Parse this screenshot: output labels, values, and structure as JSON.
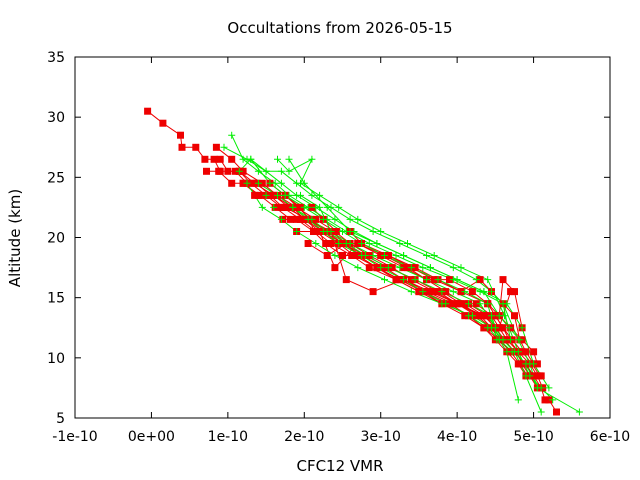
{
  "chart_data": {
    "type": "scatter",
    "title": "Occultations from 2026-05-15",
    "xlabel": "CFC12 VMR",
    "ylabel": "Altitude (km)",
    "xlim": [
      -1e-10,
      6e-10
    ],
    "ylim": [
      5,
      35
    ],
    "x_ticks": [
      "-1e-10",
      "0e+00",
      "1e-10",
      "2e-10",
      "3e-10",
      "4e-10",
      "5e-10",
      "6e-10"
    ],
    "y_ticks": [
      "5",
      "10",
      "15",
      "20",
      "25",
      "30",
      "35"
    ],
    "grid": false,
    "legend": "none",
    "colors": {
      "red_series": "#ee0000",
      "green_series": "#00ee00",
      "frame": "#000000"
    },
    "series": [
      {
        "marker": "square",
        "color": "#ee0000",
        "x": [
          -5e-12,
          1.5e-11,
          3.8e-11,
          4e-11,
          5.8e-11,
          7e-11,
          8.2e-11,
          9e-11,
          1.1e-10,
          1.25e-10,
          1.38e-10,
          1.55e-10,
          1.75e-10,
          1.92e-10,
          2.08e-10,
          2.12e-10,
          2.35e-10,
          2.55e-10,
          2.7e-10,
          2.95e-10,
          3.25e-10,
          3.55e-10,
          3.9e-10,
          4.15e-10,
          4.35e-10,
          4.55e-10,
          4.7e-10,
          4.78e-10,
          4.85e-10,
          4.95e-10,
          5.05e-10,
          5.1e-10,
          5.15e-10,
          5.2e-10,
          5.3e-10
        ],
        "y": [
          30.5,
          29.5,
          28.5,
          27.5,
          27.5,
          26.5,
          26.5,
          25.5,
          25.5,
          24.5,
          24.5,
          23.5,
          23.5,
          22.5,
          21.5,
          20.5,
          20.5,
          19.5,
          18.5,
          17.5,
          16.5,
          15.5,
          14.5,
          13.5,
          12.5,
          11.5,
          10.5,
          10.5,
          9.5,
          8.5,
          7.5,
          7.5,
          6.5,
          6.5,
          5.5
        ]
      },
      {
        "marker": "square",
        "color": "#ee0000",
        "x": [
          7.2e-11,
          8.8e-11,
          1.05e-10,
          1.2e-10,
          1.4e-10,
          1.6e-10,
          1.8e-10,
          2e-10,
          2.2e-10,
          2.45e-10,
          2.7e-10,
          3e-10,
          3.3e-10,
          3.6e-10,
          3.85e-10,
          4.1e-10,
          4.35e-10,
          4.55e-10,
          4.65e-10,
          4.8e-10,
          4.95e-10,
          5.05e-10,
          5.12e-10
        ],
        "y": [
          25.5,
          25.5,
          24.5,
          24.5,
          23.5,
          23.5,
          22.5,
          21.5,
          20.5,
          19.5,
          19.5,
          18.5,
          17.5,
          16.5,
          15.5,
          14.5,
          13.5,
          12.5,
          11.5,
          10.5,
          9.5,
          8.5,
          7.5
        ]
      },
      {
        "marker": "square",
        "color": "#ee0000",
        "x": [
          9e-11,
          1e-10,
          1.15e-10,
          1.3e-10,
          1.5e-10,
          1.7e-10,
          1.85e-10,
          2.05e-10,
          2.3e-10,
          2.5e-10,
          2.8e-10,
          3.1e-10,
          3.45e-10,
          3.75e-10,
          4e-10,
          4.25e-10,
          4.45e-10,
          4.6e-10,
          4.75e-10,
          4.9e-10,
          5e-10,
          5.1e-10
        ],
        "y": [
          26.5,
          25.5,
          25.5,
          24.5,
          23.5,
          22.5,
          22.5,
          21.5,
          20.5,
          19.5,
          18.5,
          17.5,
          16.5,
          15.5,
          14.5,
          13.5,
          12.5,
          11.5,
          10.5,
          9.5,
          8.5,
          7.5
        ]
      },
      {
        "marker": "square",
        "color": "#ee0000",
        "x": [
          8.5e-11,
          1.05e-10,
          1.2e-10,
          1.45e-10,
          1.65e-10,
          1.9e-10,
          2.15e-10,
          2.4e-10,
          2.6e-10,
          2.85e-10,
          3.15e-10,
          3.4e-10,
          3.7e-10,
          4e-10,
          4.3e-10,
          4.5e-10,
          4.6e-10,
          4.72e-10,
          4.85e-10,
          4.98e-10,
          5.08e-10
        ],
        "y": [
          27.5,
          26.5,
          25.5,
          24.5,
          23.5,
          22.5,
          21.5,
          20.5,
          19.5,
          18.5,
          17.5,
          16.5,
          15.5,
          14.5,
          13.5,
          13.5,
          12.5,
          11.5,
          10.5,
          9.5,
          8.5
        ]
      },
      {
        "marker": "square",
        "color": "#ee0000",
        "x": [
          1.15e-10,
          1.35e-10,
          1.6e-10,
          1.85e-10,
          2e-10,
          2.25e-10,
          2.45e-10,
          2.65e-10,
          2.95e-10,
          3.25e-10,
          3.55e-10,
          3.8e-10,
          4.1e-10,
          4.35e-10,
          4.5e-10,
          4.65e-10,
          4.8e-10,
          4.9e-10
        ],
        "y": [
          25.5,
          24.5,
          23.5,
          22.5,
          21.5,
          20.5,
          19.5,
          18.5,
          17.5,
          16.5,
          15.5,
          14.5,
          13.5,
          12.5,
          11.5,
          10.5,
          9.5,
          8.5
        ]
      },
      {
        "marker": "square",
        "color": "#ee0000",
        "x": [
          1.2e-10,
          1.42e-10,
          1.62e-10,
          1.82e-10,
          2.05e-10,
          2.25e-10,
          2.5e-10,
          2.75e-10,
          3.05e-10,
          3.3e-10,
          3.65e-10,
          4e-10,
          4.35e-10,
          4.5e-10,
          4.62e-10,
          4.75e-10,
          4.88e-10,
          5e-10
        ],
        "y": [
          24.5,
          23.5,
          22.5,
          21.5,
          21.5,
          20.5,
          19.5,
          18.5,
          17.5,
          16.5,
          15.5,
          14.5,
          13.5,
          12.5,
          11.5,
          10.5,
          9.5,
          8.5
        ]
      },
      {
        "marker": "square",
        "color": "#ee0000",
        "x": [
          1.35e-10,
          1.55e-10,
          1.72e-10,
          1.95e-10,
          2.15e-10,
          2.35e-10,
          2.62e-10,
          2.85e-10,
          3.2e-10,
          3.5e-10,
          3.8e-10,
          4.05e-10,
          4.3e-10,
          4.45e-10,
          4.55e-10,
          4.7e-10,
          4.82e-10,
          4.92e-10
        ],
        "y": [
          23.5,
          23.5,
          22.5,
          21.5,
          20.5,
          19.5,
          18.5,
          17.5,
          16.5,
          15.5,
          15.5,
          14.5,
          13.5,
          12.5,
          11.5,
          10.5,
          9.5,
          8.5
        ]
      },
      {
        "marker": "square",
        "color": "#ee0000",
        "x": [
          1.55e-10,
          1.75e-10,
          1.95e-10,
          2.1e-10,
          2.25e-10,
          2.42e-10,
          2.6e-10,
          2.75e-10,
          3.1e-10,
          3.4e-10,
          3.7e-10,
          4.05e-10,
          4.4e-10,
          4.5e-10,
          4.6e-10,
          4.68e-10,
          4.8e-10
        ],
        "y": [
          24.5,
          23.5,
          22.5,
          22.5,
          21.5,
          20.5,
          20.5,
          19.5,
          18.5,
          17.5,
          16.5,
          15.5,
          14.5,
          13.5,
          12.5,
          11.5,
          10.5
        ]
      },
      {
        "marker": "square",
        "color": "#ee0000",
        "x": [
          1.72e-10,
          1.9e-10,
          2.12e-10,
          2.28e-10,
          2.5e-10,
          2.7e-10,
          2.95e-10,
          3.2e-10,
          3.5e-10,
          3.8e-10,
          4.15e-10,
          4.4e-10,
          4.55e-10,
          4.7e-10,
          4.85e-10,
          5e-10,
          5.05e-10
        ],
        "y": [
          21.5,
          21.5,
          20.5,
          19.5,
          18.5,
          18.5,
          17.5,
          16.5,
          15.5,
          14.5,
          14.5,
          13.5,
          13.5,
          12.5,
          11.5,
          10.5,
          9.5
        ]
      },
      {
        "marker": "square",
        "color": "#ee0000",
        "x": [
          1.75e-10,
          2.05e-10,
          2.35e-10,
          2.55e-10,
          2.9e-10,
          3.3e-10,
          3.6e-10,
          3.95e-10,
          4.25e-10,
          4.45e-10,
          4.55e-10,
          4.7e-10
        ],
        "y": [
          22.5,
          21.5,
          20.5,
          16.5,
          15.5,
          16.5,
          15.5,
          14.5,
          14.5,
          13.5,
          12.5,
          15.5
        ]
      },
      {
        "marker": "square",
        "color": "#ee0000",
        "x": [
          1.9e-10,
          2.2e-10,
          2.4e-10,
          2.7e-10,
          3.05e-10,
          3.35e-10,
          3.6e-10,
          3.9e-10,
          4.2e-10,
          4.4e-10,
          4.55e-10,
          4.6e-10,
          4.75e-10,
          4.85e-10
        ],
        "y": [
          20.5,
          20.5,
          17.5,
          19.5,
          18.5,
          17.5,
          16.5,
          16.5,
          15.5,
          14.5,
          13.5,
          16.5,
          15.5,
          12.5
        ]
      },
      {
        "marker": "square",
        "color": "#ee0000",
        "x": [
          2.05e-10,
          2.3e-10,
          2.55e-10,
          2.8e-10,
          3.1e-10,
          3.45e-10,
          3.75e-10,
          4.05e-10,
          4.3e-10,
          4.45e-10,
          4.6e-10,
          4.75e-10,
          4.82e-10,
          4.9e-10,
          5e-10,
          5.1e-10
        ],
        "y": [
          19.5,
          18.5,
          19.5,
          18.5,
          18.5,
          17.5,
          16.5,
          15.5,
          16.5,
          15.5,
          14.5,
          13.5,
          11.5,
          10.5,
          9.5,
          8.5
        ]
      },
      {
        "marker": "plus",
        "color": "#00ee00",
        "x": [
          1.05e-10,
          1.2e-10,
          1.4e-10,
          1.62e-10,
          1.8e-10,
          2.05e-10,
          2.3e-10,
          2.55e-10,
          2.85e-10,
          3.2e-10,
          3.55e-10,
          3.95e-10,
          4.3e-10,
          4.6e-10,
          4.8e-10,
          4.95e-10,
          5.05e-10,
          5.6e-10
        ],
        "y": [
          28.5,
          26.5,
          25.5,
          24.5,
          23.5,
          22.5,
          21.5,
          20.5,
          19.5,
          18.5,
          17.5,
          16.5,
          15.5,
          14.5,
          11.5,
          9.5,
          7.5,
          5.5
        ]
      },
      {
        "marker": "plus",
        "color": "#00ee00",
        "x": [
          9.5e-11,
          1.25e-10,
          1.5e-10,
          1.7e-10,
          1.9e-10,
          2.15e-10,
          2.4e-10,
          2.65e-10,
          2.95e-10,
          3.3e-10,
          3.65e-10,
          4e-10,
          4.35e-10,
          4.65e-10,
          4.85e-10,
          5e-10,
          5.2e-10
        ],
        "y": [
          27.5,
          26.5,
          25.5,
          24.5,
          23.5,
          22.5,
          21.5,
          20.5,
          19.5,
          18.5,
          17.5,
          16.5,
          15.5,
          14.5,
          12.5,
          9.5,
          7.5
        ]
      },
      {
        "marker": "plus",
        "color": "#00ee00",
        "x": [
          1.65e-10,
          1.8e-10,
          2.1e-10,
          1.95e-10,
          2.2e-10,
          2.45e-10,
          2.7e-10,
          3e-10,
          3.35e-10,
          3.7e-10,
          4.05e-10,
          4.4e-10,
          4.62e-10,
          4.8e-10,
          4.95e-10,
          5.1e-10,
          5.25e-10
        ],
        "y": [
          26.5,
          25.5,
          26.5,
          24.5,
          23.5,
          22.5,
          21.5,
          20.5,
          19.5,
          18.5,
          17.5,
          16.5,
          13.5,
          10.5,
          8.5,
          7.5,
          6.5
        ]
      },
      {
        "marker": "plus",
        "color": "#00ee00",
        "x": [
          1.3e-10,
          1.55e-10,
          1.75e-10,
          1.95e-10,
          2.2e-10,
          2.35e-10,
          2.6e-10,
          2.9e-10,
          3.25e-10,
          3.6e-10,
          3.95e-10,
          4.3e-10,
          4.5e-10,
          4.6e-10,
          4.75e-10,
          4.9e-10,
          5.1e-10
        ],
        "y": [
          26.5,
          24.5,
          23.5,
          23.5,
          22.5,
          20.5,
          19.5,
          18.5,
          17.5,
          16.5,
          15.5,
          14.5,
          12.5,
          11.5,
          10.5,
          8.5,
          5.5
        ]
      },
      {
        "marker": "plus",
        "color": "#00ee00",
        "x": [
          1.4e-10,
          1.65e-10,
          1.85e-10,
          2.1e-10,
          2.3e-10,
          2.55e-10,
          2.8e-10,
          3.1e-10,
          3.45e-10,
          3.8e-10,
          4.15e-10,
          4.45e-10,
          4.55e-10,
          4.65e-10,
          4.8e-10
        ],
        "y": [
          24.5,
          23.5,
          22.5,
          21.5,
          20.5,
          19.5,
          18.5,
          17.5,
          16.5,
          15.5,
          14.5,
          13.5,
          11.5,
          10.5,
          6.5
        ]
      },
      {
        "marker": "plus",
        "color": "#00ee00",
        "x": [
          1.5e-10,
          1.75e-10,
          2e-10,
          2.25e-10,
          2.5e-10,
          2.75e-10,
          3.05e-10,
          3.4e-10,
          3.75e-10,
          4.1e-10,
          4.4e-10,
          4.52e-10
        ],
        "y": [
          23.5,
          23.5,
          22.5,
          21.5,
          20.5,
          19.5,
          18.5,
          17.5,
          16.5,
          15.5,
          14.5,
          11.5
        ]
      },
      {
        "marker": "plus",
        "color": "#00ee00",
        "x": [
          1.25e-10,
          1.45e-10,
          1.7e-10,
          1.9e-10,
          2.15e-10,
          2.4e-10,
          2.7e-10,
          3.05e-10,
          3.4e-10,
          3.8e-10,
          4.2e-10,
          4.45e-10,
          4.6e-10,
          4.75e-10,
          4.9e-10,
          5.05e-10
        ],
        "y": [
          24.5,
          22.5,
          21.5,
          20.5,
          19.5,
          18.5,
          17.5,
          16.5,
          15.5,
          14.5,
          13.5,
          12.5,
          11.5,
          10.5,
          9.5,
          7.5
        ]
      },
      {
        "marker": "plus",
        "color": "#00ee00",
        "x": [
          1.8e-10,
          2e-10,
          2.3e-10,
          2.6e-10,
          2.95e-10,
          3.3e-10,
          3.65e-10,
          4e-10,
          4.35e-10,
          4.55e-10,
          4.68e-10,
          4.82e-10
        ],
        "y": [
          26.5,
          24.5,
          22.5,
          20.5,
          19.5,
          18.5,
          17.5,
          16.5,
          15.5,
          13.5,
          12.5,
          11.5
        ]
      },
      {
        "marker": "plus",
        "color": "#00ee00",
        "x": [
          1.15e-10,
          1.3e-10,
          1.5e-10,
          1.7e-10,
          1.9e-10,
          2.1e-10,
          2.35e-10,
          2.6e-10,
          2.9e-10,
          3.25e-10,
          3.6e-10,
          3.95e-10,
          4.25e-10,
          4.45e-10,
          4.6e-10,
          4.7e-10
        ],
        "y": [
          25.5,
          26.5,
          25.5,
          25.5,
          24.5,
          23.5,
          22.5,
          21.5,
          20.5,
          19.5,
          18.5,
          17.5,
          16.5,
          15.5,
          14.5,
          11.5
        ]
      },
      {
        "marker": "plus",
        "color": "#00ee00",
        "x": [
          1.6e-10,
          1.85e-10,
          2.05e-10,
          2.25e-10,
          2.45e-10,
          2.75e-10,
          3e-10,
          3.3e-10,
          3.55e-10,
          3.85e-10,
          4.15e-10,
          4.4e-10,
          4.55e-10,
          4.72e-10
        ],
        "y": [
          22.5,
          22.5,
          21.5,
          20.5,
          19.5,
          18.5,
          17.5,
          16.5,
          15.5,
          14.5,
          13.5,
          12.5,
          11.5,
          10.5
        ]
      }
    ]
  }
}
